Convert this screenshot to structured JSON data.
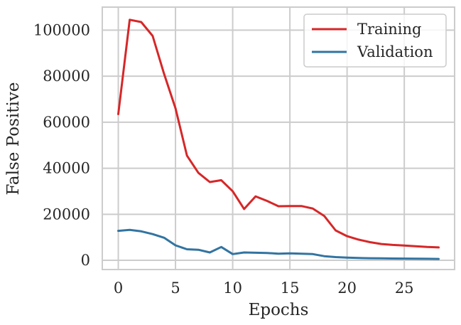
{
  "chart_data": {
    "type": "line",
    "xlabel": "Epochs",
    "ylabel": "False Positive",
    "xlim": [
      -1.4,
      29.4
    ],
    "ylim": [
      -4000,
      110000
    ],
    "x_ticks": [
      0,
      5,
      10,
      15,
      20,
      25
    ],
    "y_ticks": [
      0,
      20000,
      40000,
      60000,
      80000,
      100000
    ],
    "grid": true,
    "legend_position": "top-right",
    "x": [
      0,
      1,
      2,
      3,
      4,
      5,
      6,
      7,
      8,
      9,
      10,
      11,
      12,
      13,
      14,
      15,
      16,
      17,
      18,
      19,
      20,
      21,
      22,
      23,
      24,
      25,
      26,
      27,
      28
    ],
    "series": [
      {
        "name": "Training",
        "color": "#d62728",
        "values": [
          63500,
          104500,
          103500,
          97500,
          81000,
          66000,
          45500,
          38000,
          34000,
          34800,
          30000,
          22300,
          27800,
          25800,
          23500,
          23600,
          23600,
          22500,
          19300,
          13000,
          10500,
          9000,
          7900,
          7100,
          6700,
          6400,
          6100,
          5800,
          5600
        ]
      },
      {
        "name": "Validation",
        "color": "#3274a1",
        "values": [
          12800,
          13200,
          12600,
          11400,
          9800,
          6500,
          4800,
          4600,
          3400,
          5800,
          2700,
          3400,
          3300,
          3200,
          2900,
          3000,
          2900,
          2700,
          1800,
          1400,
          1200,
          1000,
          900,
          850,
          800,
          750,
          700,
          650,
          600
        ]
      }
    ]
  }
}
